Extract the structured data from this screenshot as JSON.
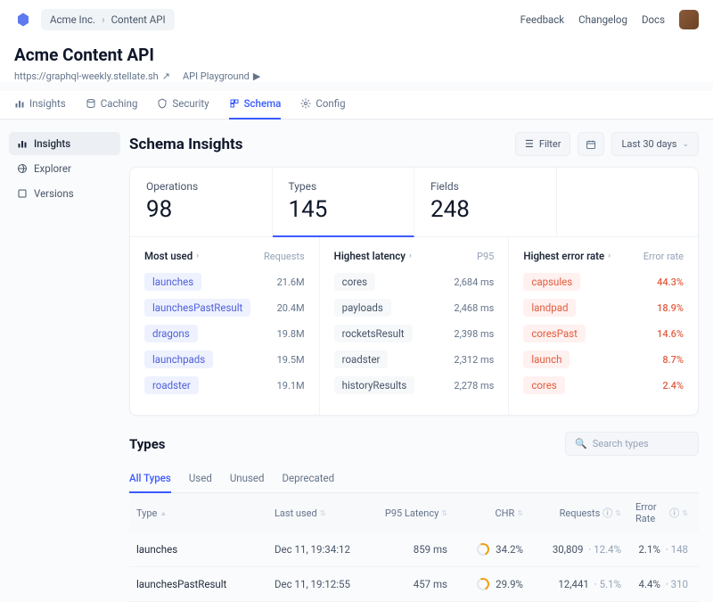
{
  "breadcrumb": {
    "org": "Acme Inc.",
    "project": "Content API"
  },
  "topnav": {
    "feedback": "Feedback",
    "changelog": "Changelog",
    "docs": "Docs"
  },
  "header": {
    "title": "Acme Content API",
    "url": "https://graphql-weekly.stellate.sh",
    "playground": "API Playground"
  },
  "maintabs": {
    "insights": "Insights",
    "caching": "Caching",
    "security": "Security",
    "schema": "Schema",
    "config": "Config"
  },
  "sidebar": {
    "insights": "Insights",
    "explorer": "Explorer",
    "versions": "Versions"
  },
  "page": {
    "title": "Schema Insights",
    "filter": "Filter",
    "range": "Last 30 days"
  },
  "stats": {
    "ops_label": "Operations",
    "ops_val": "98",
    "types_label": "Types",
    "types_val": "145",
    "fields_label": "Fields",
    "fields_val": "248"
  },
  "mostused": {
    "title": "Most used",
    "metric": "Requests",
    "items": [
      {
        "name": "launches",
        "val": "21.6M"
      },
      {
        "name": "launchesPastResult",
        "val": "20.4M"
      },
      {
        "name": "dragons",
        "val": "19.8M"
      },
      {
        "name": "launchpads",
        "val": "19.5M"
      },
      {
        "name": "roadster",
        "val": "19.1M"
      }
    ]
  },
  "latency": {
    "title": "Highest latency",
    "metric": "P95",
    "items": [
      {
        "name": "cores",
        "val": "2,684 ms"
      },
      {
        "name": "payloads",
        "val": "2,468 ms"
      },
      {
        "name": "rocketsResult",
        "val": "2,398 ms"
      },
      {
        "name": "roadster",
        "val": "2,312 ms"
      },
      {
        "name": "historyResults",
        "val": "2,278 ms"
      }
    ]
  },
  "errors": {
    "title": "Highest error rate",
    "metric": "Error rate",
    "items": [
      {
        "name": "capsules",
        "val": "44.3%"
      },
      {
        "name": "landpad",
        "val": "18.9%"
      },
      {
        "name": "coresPast",
        "val": "14.6%"
      },
      {
        "name": "launch",
        "val": "8.7%"
      },
      {
        "name": "cores",
        "val": "2.4%"
      }
    ]
  },
  "types_section": {
    "title": "Types",
    "search_ph": "Search types",
    "tabs": {
      "all": "All Types",
      "used": "Used",
      "unused": "Unused",
      "deprecated": "Deprecated"
    },
    "cols": {
      "type": "Type",
      "last": "Last used",
      "p95": "P95 Latency",
      "chr": "CHR",
      "req": "Requests",
      "err": "Error Rate"
    },
    "rows": [
      {
        "type": "launches",
        "last": "Dec 11, 19:34:12",
        "p95": "859 ms",
        "chr": "34.2%",
        "req": "30,809",
        "req_pct": "12.4%",
        "err": "2.1%",
        "err_n": "148"
      },
      {
        "type": "launchesPastResult",
        "last": "Dec 11, 19:12:55",
        "p95": "457 ms",
        "chr": "29.9%",
        "req": "12,441",
        "req_pct": "5.1%",
        "err": "4.4%",
        "err_n": "310"
      }
    ]
  }
}
